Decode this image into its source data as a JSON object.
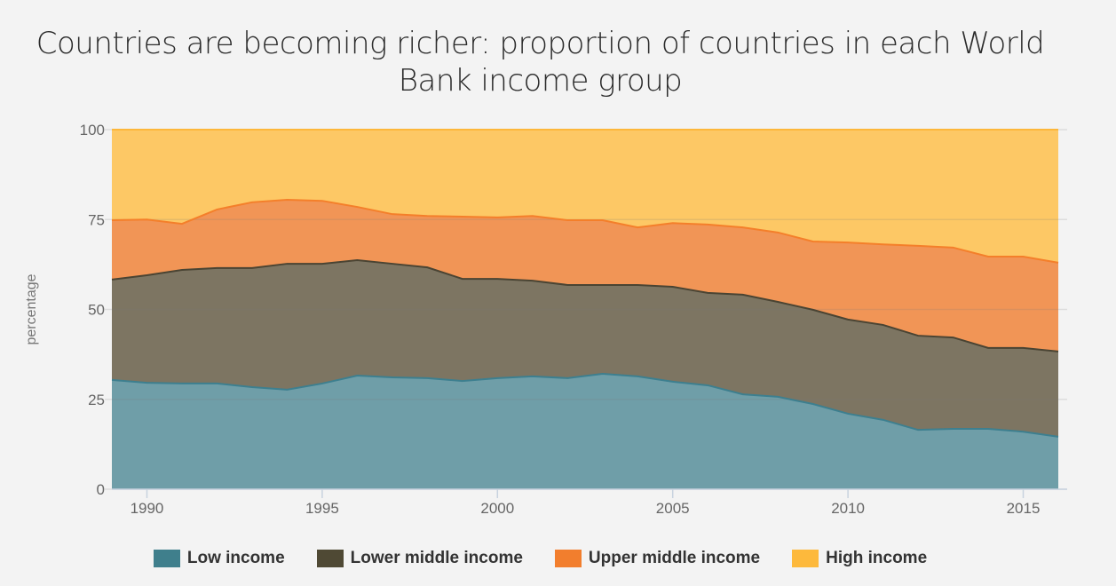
{
  "chart_data": {
    "type": "area",
    "stacked": true,
    "title": "Countries are becoming richer: proportion of countries in each World Bank income group",
    "xlabel": "",
    "ylabel": "percentage",
    "xlim": [
      1989,
      2016
    ],
    "ylim": [
      0,
      100
    ],
    "x_ticks": [
      "1990",
      "1995",
      "2000",
      "2005",
      "2010",
      "2015"
    ],
    "y_ticks": [
      "0",
      "25",
      "50",
      "75",
      "100"
    ],
    "grid": "horizontal",
    "legend_position": "bottom",
    "x": [
      1989,
      1990,
      1991,
      1992,
      1993,
      1994,
      1995,
      1996,
      1997,
      1998,
      1999,
      2000,
      2001,
      2002,
      2003,
      2004,
      2005,
      2006,
      2007,
      2008,
      2009,
      2010,
      2011,
      2012,
      2013,
      2014,
      2015,
      2016
    ],
    "series": [
      {
        "name": "Low income",
        "line_color": "#3d7f8f",
        "fill_color": "#6f9ea8",
        "values": [
          30.4,
          29.6,
          29.4,
          29.4,
          28.4,
          27.7,
          29.4,
          31.6,
          31.1,
          30.9,
          30.1,
          30.9,
          31.4,
          30.9,
          32.1,
          31.4,
          29.9,
          28.9,
          26.4,
          25.7,
          23.7,
          21.0,
          19.3,
          16.5,
          16.8,
          16.8,
          16.0,
          14.6
        ]
      },
      {
        "name": "Lower middle income",
        "line_color": "#4a4433",
        "fill_color": "#7d7562",
        "values": [
          27.9,
          29.9,
          31.6,
          32.1,
          33.1,
          35.0,
          33.3,
          32.1,
          31.6,
          30.8,
          28.4,
          27.6,
          26.6,
          25.9,
          24.7,
          25.4,
          26.4,
          25.7,
          27.7,
          26.4,
          26.2,
          26.2,
          26.4,
          26.2,
          25.4,
          22.5,
          23.3,
          23.7
        ]
      },
      {
        "name": "Upper middle income",
        "line_color": "#f47f2a",
        "fill_color": "#f19556",
        "values": [
          16.5,
          15.5,
          12.8,
          16.3,
          18.3,
          17.8,
          17.5,
          14.8,
          13.8,
          14.3,
          17.3,
          17.1,
          18.0,
          18.0,
          18.0,
          16.0,
          17.7,
          19.0,
          18.7,
          19.3,
          19.0,
          21.4,
          22.4,
          25.0,
          25.0,
          25.4,
          25.4,
          24.7
        ]
      },
      {
        "name": "High income",
        "line_color": "#fdb73a",
        "fill_color": "#fdc865",
        "values": [
          25.2,
          25.0,
          26.2,
          22.2,
          20.2,
          19.5,
          19.8,
          21.5,
          23.5,
          24.0,
          24.2,
          24.4,
          24.0,
          25.2,
          25.2,
          27.2,
          26.0,
          26.4,
          27.2,
          28.6,
          31.1,
          31.4,
          31.9,
          32.3,
          32.8,
          35.3,
          35.3,
          37.0
        ]
      }
    ]
  }
}
